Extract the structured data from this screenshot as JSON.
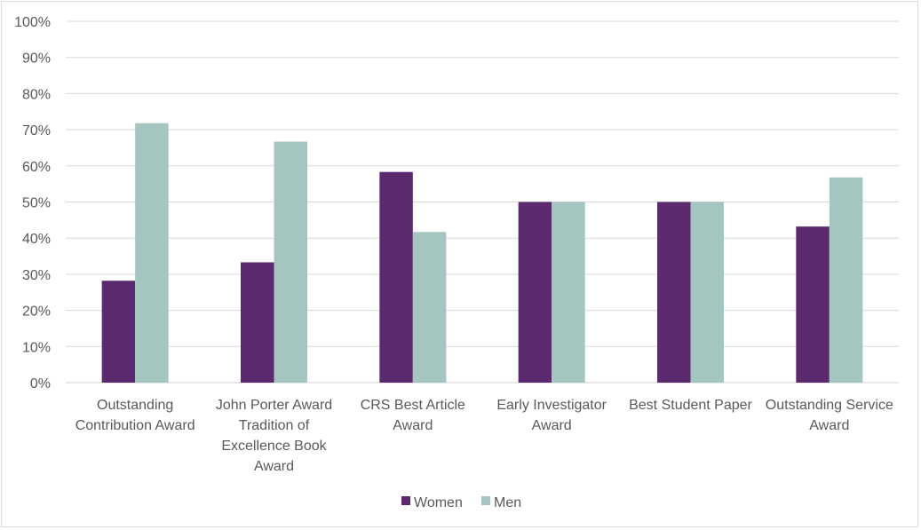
{
  "chart_data": {
    "type": "bar",
    "categories": [
      [
        "Outstanding",
        "Contribution Award"
      ],
      [
        "John Porter Award",
        "Tradition of",
        "Excellence Book",
        "Award"
      ],
      [
        "CRS Best Article",
        "Award"
      ],
      [
        "Early Investigator",
        "Award"
      ],
      [
        "Best Student Paper"
      ],
      [
        "Outstanding Service",
        "Award"
      ]
    ],
    "series": [
      {
        "name": "Women",
        "color": "#5b2a6e",
        "values": [
          28.2,
          33.3,
          58.3,
          50,
          50,
          43.2
        ]
      },
      {
        "name": "Men",
        "color": "#a5c6c0",
        "values": [
          71.8,
          66.7,
          41.7,
          50,
          50,
          56.8
        ]
      }
    ],
    "ylim": [
      0,
      100
    ],
    "yticks": [
      "0%",
      "10%",
      "20%",
      "30%",
      "40%",
      "50%",
      "60%",
      "70%",
      "80%",
      "90%",
      "100%"
    ],
    "grid": true,
    "legend_position": "bottom-center",
    "title": "",
    "xlabel": "",
    "ylabel": ""
  }
}
